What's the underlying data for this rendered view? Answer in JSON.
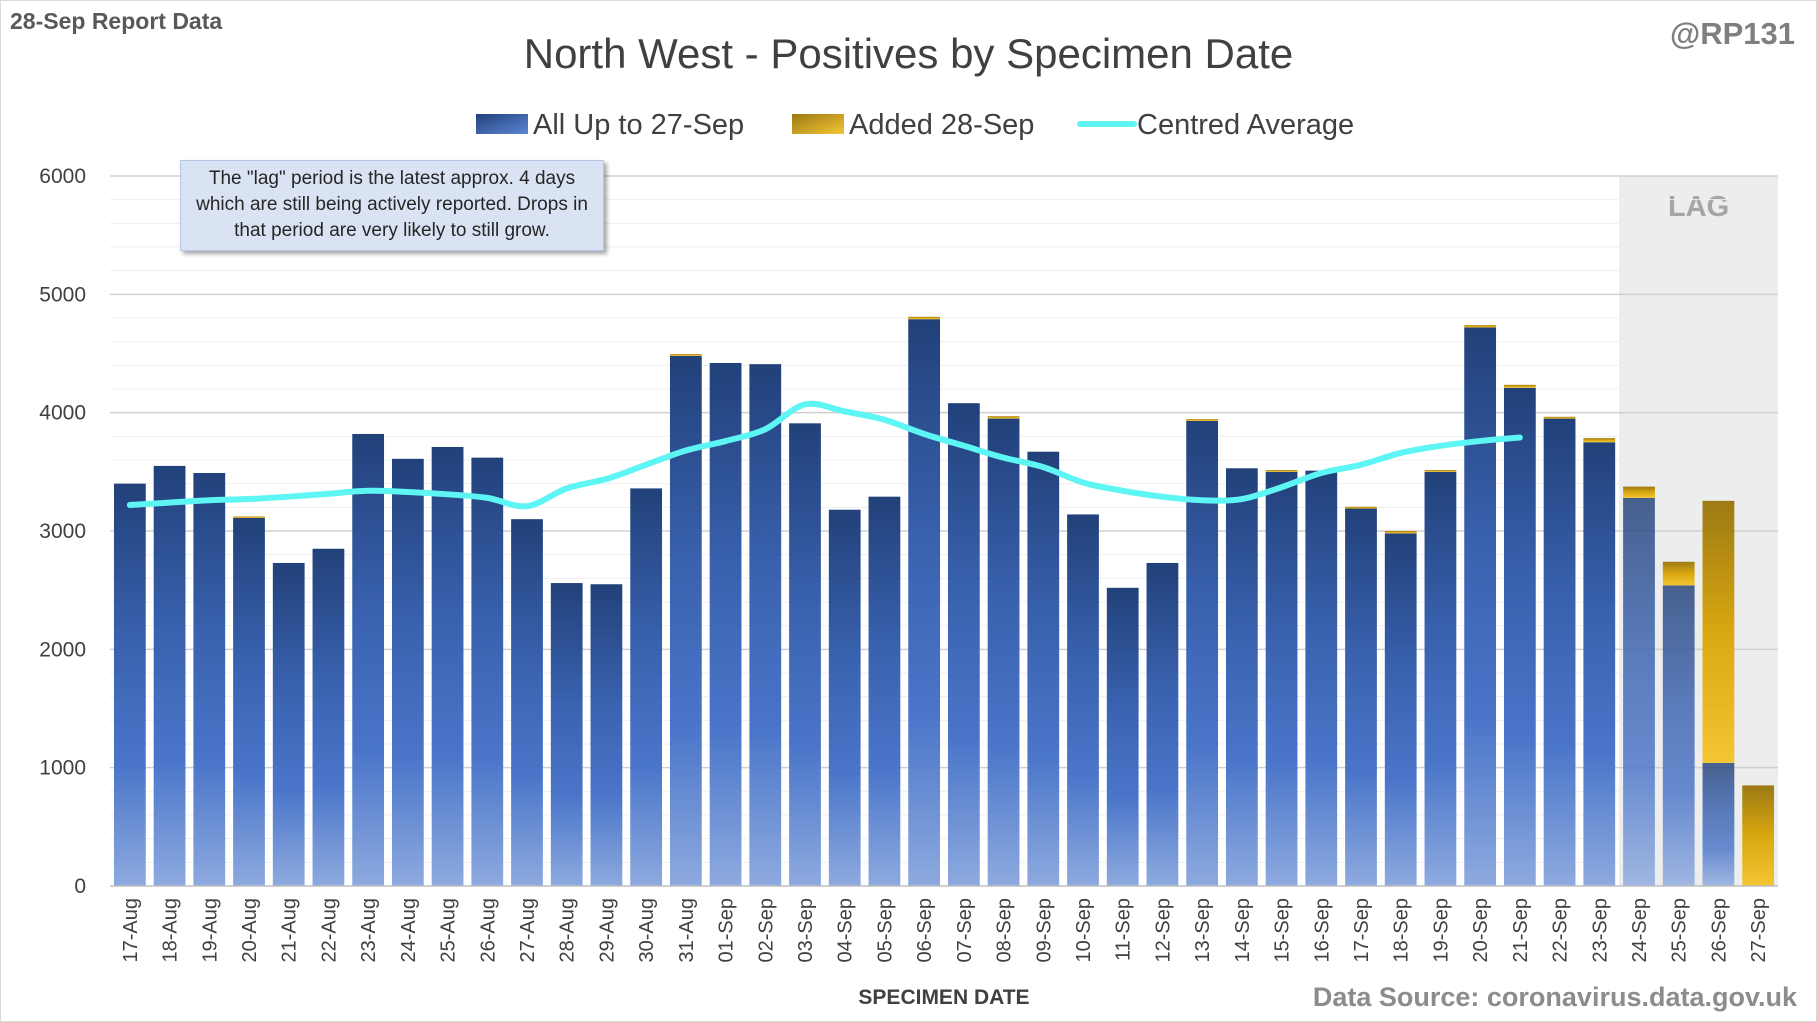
{
  "header": {
    "report_label": "28-Sep Report Data",
    "handle": "@RP131",
    "source": "Data Source: coronavirus.data.gov.uk"
  },
  "note": "The \"lag\" period is the latest approx. 4 days which are still being actively reported.  Drops in that period are very likely to still grow.",
  "colors": {
    "base_series": "#3a62b0",
    "added_series": "#d4a20a",
    "average_line": "#5ef5f5",
    "lag_shade": "#ededed"
  },
  "chart_data": {
    "type": "bar",
    "title": "North West - Positives by Specimen Date",
    "xlabel": "SPECIMEN DATE",
    "ylabel": "",
    "ylim": [
      0,
      6000
    ],
    "yticks": [
      0,
      1000,
      2000,
      3000,
      4000,
      5000,
      6000
    ],
    "gridlines": true,
    "stacked": true,
    "legend_position": "top",
    "lag_label": "LAG",
    "lag_categories": [
      "24-Sep",
      "25-Sep",
      "26-Sep",
      "27-Sep"
    ],
    "categories": [
      "17-Aug",
      "18-Aug",
      "19-Aug",
      "20-Aug",
      "21-Aug",
      "22-Aug",
      "23-Aug",
      "24-Aug",
      "25-Aug",
      "26-Aug",
      "27-Aug",
      "28-Aug",
      "29-Aug",
      "30-Aug",
      "31-Aug",
      "01-Sep",
      "02-Sep",
      "03-Sep",
      "04-Sep",
      "05-Sep",
      "06-Sep",
      "07-Sep",
      "08-Sep",
      "09-Sep",
      "10-Sep",
      "11-Sep",
      "12-Sep",
      "13-Sep",
      "14-Sep",
      "15-Sep",
      "16-Sep",
      "17-Sep",
      "18-Sep",
      "19-Sep",
      "20-Sep",
      "21-Sep",
      "22-Sep",
      "23-Sep",
      "24-Sep",
      "25-Sep",
      "26-Sep",
      "27-Sep"
    ],
    "series": [
      {
        "name": "All Up to 27-Sep",
        "kind": "bar",
        "values": [
          3400,
          3550,
          3490,
          3110,
          2730,
          2850,
          3820,
          3610,
          3710,
          3620,
          3100,
          2560,
          2550,
          3360,
          4480,
          4420,
          4410,
          3910,
          3180,
          3290,
          4790,
          4080,
          3950,
          3670,
          3140,
          2520,
          2730,
          3930,
          3530,
          3500,
          3510,
          3190,
          2980,
          3500,
          4720,
          4210,
          3950,
          3750,
          3280,
          2540,
          1040,
          0
        ]
      },
      {
        "name": "Added 28-Sep",
        "kind": "bar",
        "values": [
          0,
          0,
          0,
          10,
          0,
          0,
          0,
          0,
          0,
          0,
          0,
          0,
          0,
          0,
          15,
          0,
          0,
          0,
          0,
          0,
          20,
          0,
          20,
          0,
          0,
          0,
          0,
          15,
          0,
          15,
          0,
          15,
          20,
          15,
          20,
          25,
          15,
          35,
          95,
          200,
          2215,
          850
        ]
      },
      {
        "name": "Centred Average",
        "kind": "line",
        "values": [
          3220,
          3240,
          3260,
          3270,
          3290,
          3315,
          3340,
          3330,
          3310,
          3280,
          3210,
          3360,
          3440,
          3560,
          3680,
          3760,
          3860,
          4070,
          4010,
          3940,
          3820,
          3720,
          3620,
          3540,
          3410,
          3340,
          3290,
          3260,
          3270,
          3370,
          3490,
          3560,
          3660,
          3720,
          3760,
          3790,
          null,
          null,
          null,
          null,
          null,
          null
        ]
      }
    ]
  }
}
